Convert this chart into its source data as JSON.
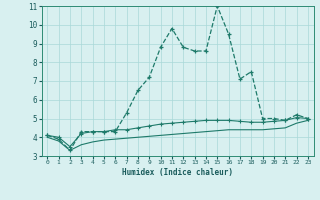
{
  "xlabel": "Humidex (Indice chaleur)",
  "x": [
    0,
    1,
    2,
    3,
    4,
    5,
    6,
    7,
    8,
    9,
    10,
    11,
    12,
    13,
    14,
    15,
    16,
    17,
    18,
    19,
    20,
    21,
    22,
    23
  ],
  "line1": [
    4.1,
    3.9,
    3.3,
    4.3,
    4.3,
    4.3,
    4.3,
    5.3,
    6.5,
    7.2,
    8.8,
    9.8,
    8.8,
    8.6,
    8.6,
    11.0,
    9.5,
    7.1,
    7.5,
    5.0,
    5.0,
    4.9,
    5.2,
    5.0
  ],
  "line2": [
    4.1,
    4.0,
    3.5,
    4.2,
    4.3,
    4.3,
    4.4,
    4.4,
    4.5,
    4.6,
    4.7,
    4.75,
    4.8,
    4.85,
    4.9,
    4.9,
    4.9,
    4.85,
    4.8,
    4.8,
    4.85,
    4.9,
    5.05,
    5.0
  ],
  "line3": [
    4.0,
    3.8,
    3.3,
    3.6,
    3.75,
    3.85,
    3.9,
    3.95,
    4.0,
    4.05,
    4.1,
    4.15,
    4.2,
    4.25,
    4.3,
    4.35,
    4.4,
    4.4,
    4.4,
    4.4,
    4.45,
    4.5,
    4.75,
    4.9
  ],
  "line_color": "#1e7a6a",
  "bg_color": "#d8f0f0",
  "grid_color": "#aad8d8",
  "ylim": [
    3,
    11
  ],
  "yticks": [
    3,
    4,
    5,
    6,
    7,
    8,
    9,
    10,
    11
  ],
  "xlim": [
    -0.5,
    23.5
  ]
}
